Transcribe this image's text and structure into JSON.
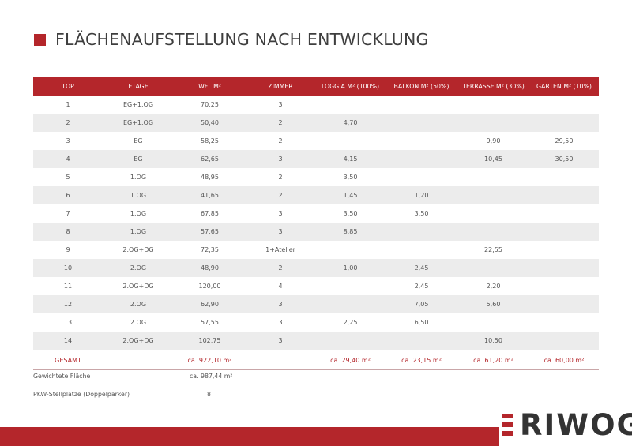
{
  "title": "FLÄCHENAUFSTELLUNG NACH ENTWICKLUNG",
  "table": {
    "headers": [
      "TOP",
      "ETAGE",
      "WFL M²",
      "ZIMMER",
      "LOGGIA M² (100%)",
      "BALKON M² (50%)",
      "TERRASSE M² (30%)",
      "GARTEN M² (10%)"
    ],
    "rows": [
      [
        "1",
        "EG+1.OG",
        "70,25",
        "3",
        "",
        "",
        "",
        ""
      ],
      [
        "2",
        "EG+1.OG",
        "50,40",
        "2",
        "4,70",
        "",
        "",
        ""
      ],
      [
        "3",
        "EG",
        "58,25",
        "2",
        "",
        "",
        "9,90",
        "29,50"
      ],
      [
        "4",
        "EG",
        "62,65",
        "3",
        "4,15",
        "",
        "10,45",
        "30,50"
      ],
      [
        "5",
        "1.OG",
        "48,95",
        "2",
        "3,50",
        "",
        "",
        ""
      ],
      [
        "6",
        "1.OG",
        "41,65",
        "2",
        "1,45",
        "1,20",
        "",
        ""
      ],
      [
        "7",
        "1.OG",
        "67,85",
        "3",
        "3,50",
        "3,50",
        "",
        ""
      ],
      [
        "8",
        "1.OG",
        "57,65",
        "3",
        "8,85",
        "",
        "",
        ""
      ],
      [
        "9",
        "2.OG+DG",
        "72,35",
        "1+Atelier",
        "",
        "",
        "22,55",
        ""
      ],
      [
        "10",
        "2.OG",
        "48,90",
        "2",
        "1,00",
        "2,45",
        "",
        ""
      ],
      [
        "11",
        "2.OG+DG",
        "120,00",
        "4",
        "",
        "2,45",
        "2,20",
        ""
      ],
      [
        "12",
        "2.OG",
        "62,90",
        "3",
        "",
        "7,05",
        "5,60",
        ""
      ],
      [
        "13",
        "2.OG",
        "57,55",
        "3",
        "2,25",
        "6,50",
        "",
        ""
      ],
      [
        "14",
        "2.OG+DG",
        "102,75",
        "3",
        "",
        "",
        "10,50",
        ""
      ]
    ],
    "total": [
      "GESAMT",
      "",
      "ca. 922,10 m²",
      "",
      "ca. 29,40 m²",
      "ca. 23,15 m²",
      "ca. 61,20 m²",
      "ca. 60,00 m²"
    ]
  },
  "weighted": {
    "label": "Gewichtete Fläche",
    "value": "ca. 987,44 m²"
  },
  "parking": {
    "label": "PKW-Stellplätze (Doppelparker)",
    "value": "8"
  },
  "logo": {
    "text": "RIWOG"
  },
  "colors": {
    "accent": "#b4262b",
    "stripe": "#ececec",
    "text": "#4a4a4a"
  }
}
